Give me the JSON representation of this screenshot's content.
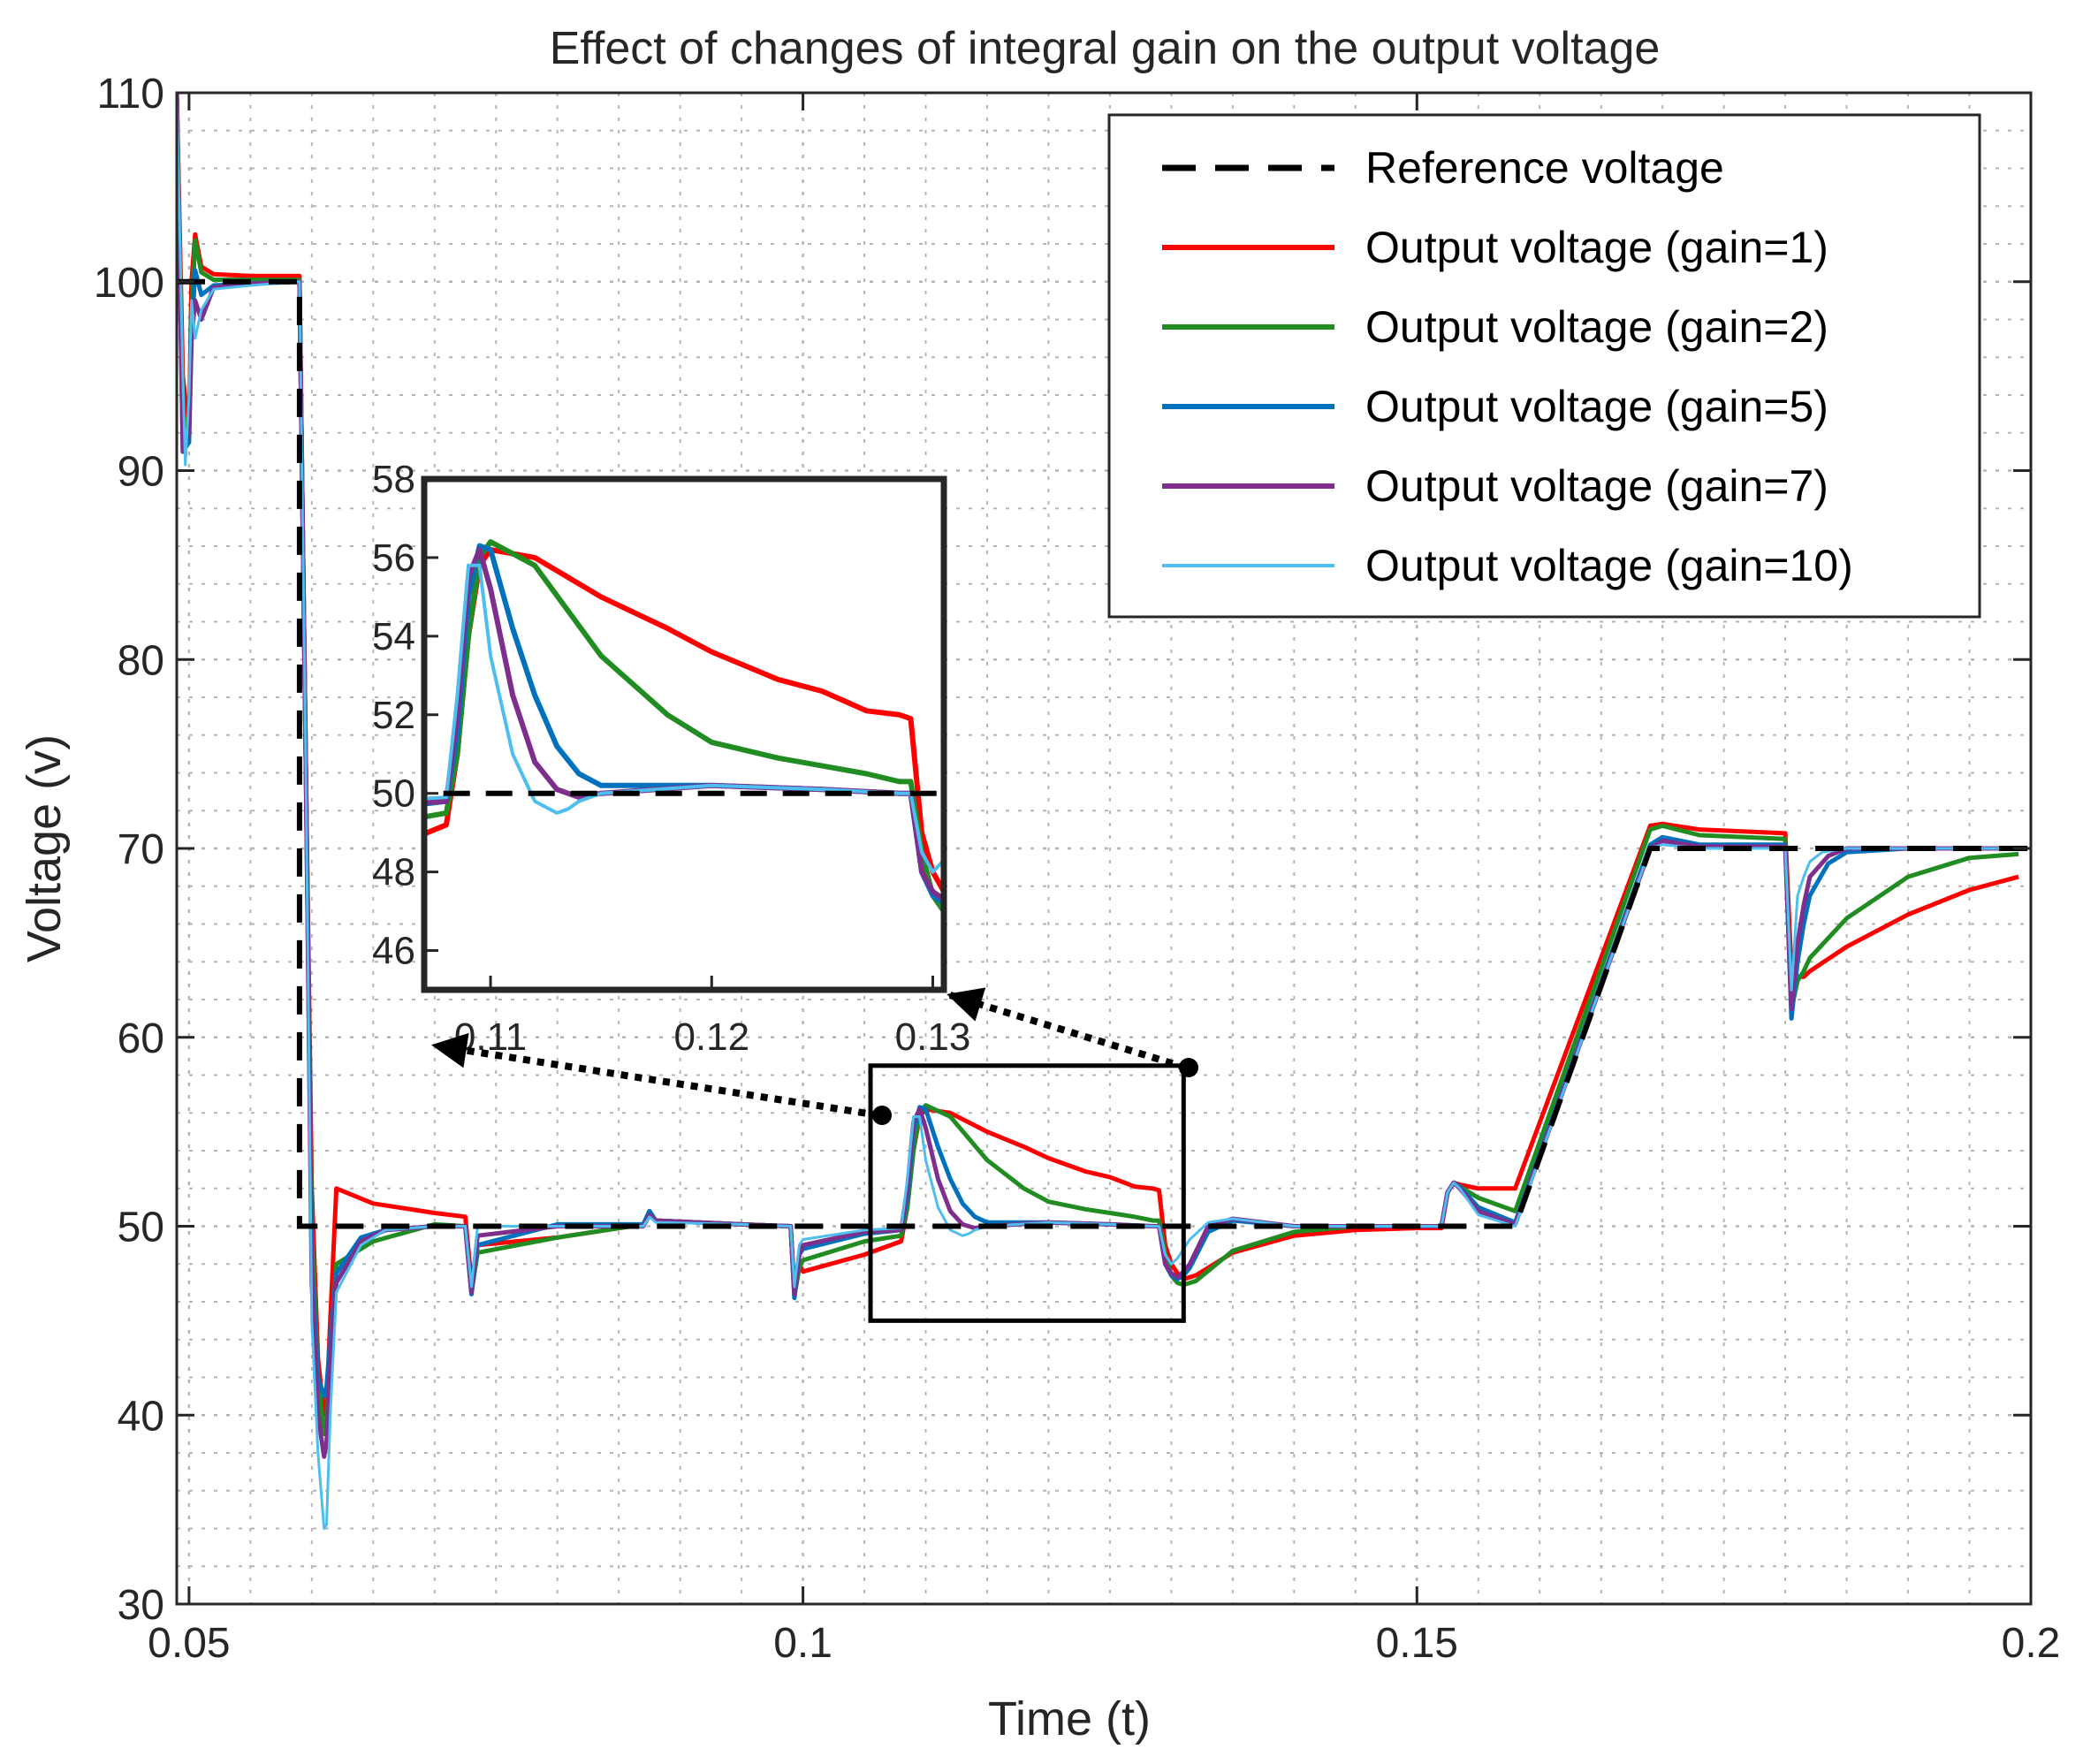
{
  "chart_data": {
    "type": "line",
    "title": "Effect of changes of integral gain on the output voltage",
    "xlabel": "Time (t)",
    "ylabel": "Voltage (v)",
    "xlim": [
      0.049,
      0.2
    ],
    "ylim": [
      30,
      110
    ],
    "xticks": [
      0.05,
      0.1,
      0.15,
      0.2
    ],
    "xtick_labels": [
      "0.05",
      "0.1",
      "0.15",
      "0.2"
    ],
    "yticks": [
      30,
      40,
      50,
      60,
      70,
      80,
      90,
      100,
      110
    ],
    "ytick_labels": [
      "30",
      "40",
      "50",
      "60",
      "70",
      "80",
      "90",
      "100",
      "110"
    ],
    "grid": true,
    "legend_position": "top-right",
    "reference": {
      "name": "Reference voltage",
      "color": "#000000",
      "dashed": true,
      "x": [
        0.049,
        0.059,
        0.059,
        0.158,
        0.169,
        0.2
      ],
      "y": [
        100,
        100,
        50,
        50,
        70,
        70
      ]
    },
    "series": [
      {
        "name": "Output voltage  (gain=1)",
        "color": "#ff0000",
        "width": 5,
        "x": [
          0.049,
          0.0495,
          0.05,
          0.0502,
          0.0505,
          0.051,
          0.052,
          0.055,
          0.059,
          0.0595,
          0.06,
          0.0605,
          0.061,
          0.0612,
          0.0615,
          0.062,
          0.065,
          0.07,
          0.0725,
          0.073,
          0.0735,
          0.08,
          0.087,
          0.0875,
          0.088,
          0.095,
          0.099,
          0.0993,
          0.0997,
          0.1,
          0.105,
          0.108,
          0.1085,
          0.109,
          0.1095,
          0.11,
          0.112,
          0.115,
          0.118,
          0.12,
          0.123,
          0.125,
          0.127,
          0.1285,
          0.129,
          0.1295,
          0.13,
          0.1305,
          0.131,
          0.1315,
          0.132,
          0.135,
          0.14,
          0.145,
          0.15,
          0.152,
          0.1525,
          0.153,
          0.1535,
          0.155,
          0.158,
          0.169,
          0.17,
          0.173,
          0.18,
          0.1805,
          0.181,
          0.1815,
          0.182,
          0.185,
          0.19,
          0.195,
          0.199
        ],
        "y": [
          110,
          95,
          92,
          100,
          102.5,
          100.8,
          100.4,
          100.3,
          100.3,
          75,
          52,
          43,
          40,
          40.5,
          45,
          52,
          51.2,
          50.7,
          50.5,
          47,
          49,
          49.4,
          50.1,
          50.8,
          50.3,
          50.1,
          50,
          46.5,
          48,
          47.6,
          48.5,
          49.2,
          51,
          54,
          55.8,
          56.2,
          56,
          55,
          54.2,
          53.6,
          52.9,
          52.6,
          52.1,
          52,
          51.9,
          49,
          48,
          47.5,
          47.2,
          47.3,
          47.4,
          48.6,
          49.5,
          49.8,
          49.9,
          49.9,
          51.8,
          52.3,
          52.2,
          52,
          52,
          71.2,
          71.3,
          71,
          70.8,
          63.5,
          63.2,
          63.2,
          63.5,
          64.8,
          66.5,
          67.8,
          68.5
        ]
      },
      {
        "name": "Output voltage (gain=2)",
        "color": "#218c21",
        "width": 5,
        "x": [
          0.049,
          0.0495,
          0.05,
          0.0502,
          0.0505,
          0.051,
          0.052,
          0.055,
          0.059,
          0.0595,
          0.06,
          0.0605,
          0.061,
          0.0612,
          0.0615,
          0.062,
          0.065,
          0.07,
          0.0725,
          0.073,
          0.0735,
          0.08,
          0.087,
          0.0875,
          0.088,
          0.095,
          0.099,
          0.0993,
          0.0997,
          0.1,
          0.105,
          0.108,
          0.1085,
          0.109,
          0.1095,
          0.11,
          0.112,
          0.115,
          0.118,
          0.12,
          0.123,
          0.125,
          0.127,
          0.1285,
          0.129,
          0.1295,
          0.13,
          0.1305,
          0.131,
          0.1315,
          0.132,
          0.135,
          0.14,
          0.145,
          0.15,
          0.152,
          0.1525,
          0.153,
          0.1535,
          0.155,
          0.158,
          0.169,
          0.17,
          0.173,
          0.18,
          0.1805,
          0.181,
          0.1815,
          0.182,
          0.185,
          0.19,
          0.195,
          0.199
        ],
        "y": [
          110,
          93,
          92,
          98,
          102.2,
          100.5,
          100.1,
          100.1,
          100.1,
          75,
          50,
          42,
          39,
          39.5,
          43,
          48,
          49.2,
          50.1,
          50,
          46.5,
          48.6,
          49.4,
          50.1,
          50.8,
          50.3,
          50.1,
          50,
          46.3,
          47.8,
          48.2,
          49.2,
          49.5,
          51,
          54,
          56,
          56.4,
          55.8,
          53.5,
          52,
          51.3,
          50.9,
          50.7,
          50.5,
          50.3,
          50.3,
          48.5,
          47.4,
          47,
          46.9,
          47,
          47.1,
          48.7,
          49.7,
          50,
          50,
          50,
          51.8,
          52.3,
          52.1,
          51.5,
          50.8,
          71,
          71.2,
          70.7,
          70.5,
          61.5,
          63,
          63.5,
          64.2,
          66.3,
          68.5,
          69.5,
          69.7
        ]
      },
      {
        "name": "Output voltage (gain=5)",
        "color": "#0072bd",
        "width": 5,
        "x": [
          0.049,
          0.0495,
          0.05,
          0.0502,
          0.0505,
          0.051,
          0.052,
          0.055,
          0.059,
          0.0595,
          0.06,
          0.0605,
          0.061,
          0.0612,
          0.0615,
          0.062,
          0.064,
          0.066,
          0.07,
          0.0725,
          0.073,
          0.0735,
          0.08,
          0.087,
          0.0875,
          0.088,
          0.095,
          0.099,
          0.0993,
          0.0997,
          0.1,
          0.105,
          0.108,
          0.1085,
          0.109,
          0.1095,
          0.11,
          0.111,
          0.112,
          0.113,
          0.114,
          0.115,
          0.12,
          0.125,
          0.1285,
          0.129,
          0.1295,
          0.13,
          0.1305,
          0.131,
          0.1315,
          0.133,
          0.135,
          0.14,
          0.15,
          0.152,
          0.1525,
          0.153,
          0.1535,
          0.155,
          0.158,
          0.169,
          0.17,
          0.173,
          0.18,
          0.1805,
          0.181,
          0.1815,
          0.182,
          0.1835,
          0.185,
          0.19,
          0.199
        ],
        "y": [
          110,
          91,
          91.5,
          97,
          100.6,
          99.3,
          99.8,
          99.9,
          100,
          75,
          48,
          42,
          41,
          41.5,
          44,
          47.5,
          49.4,
          49.8,
          50,
          50,
          46.4,
          49,
          50.1,
          50.1,
          50.8,
          50.3,
          50.1,
          50,
          46.2,
          48.5,
          48.8,
          49.6,
          49.8,
          51.5,
          55,
          56.3,
          56.2,
          54.2,
          52.5,
          51.2,
          50.5,
          50.2,
          50.2,
          50.1,
          50,
          50,
          48,
          47.4,
          47.2,
          47.4,
          47.8,
          49.7,
          50.3,
          50,
          50,
          50,
          51.8,
          52.3,
          52.1,
          51,
          50.2,
          70.2,
          70.6,
          70.2,
          70.2,
          61,
          64,
          66,
          67.5,
          69.2,
          69.8,
          70,
          70
        ]
      },
      {
        "name": "Output voltage (gain=7)",
        "color": "#7e2f8e",
        "width": 5,
        "x": [
          0.049,
          0.0495,
          0.05,
          0.0502,
          0.0505,
          0.051,
          0.052,
          0.055,
          0.059,
          0.0595,
          0.06,
          0.0605,
          0.061,
          0.0612,
          0.0615,
          0.062,
          0.064,
          0.066,
          0.07,
          0.0725,
          0.073,
          0.0735,
          0.08,
          0.087,
          0.0875,
          0.088,
          0.095,
          0.099,
          0.0993,
          0.0997,
          0.1,
          0.105,
          0.108,
          0.1085,
          0.109,
          0.1095,
          0.11,
          0.111,
          0.112,
          0.113,
          0.114,
          0.115,
          0.12,
          0.125,
          0.1285,
          0.129,
          0.1295,
          0.13,
          0.1305,
          0.131,
          0.1315,
          0.133,
          0.135,
          0.14,
          0.15,
          0.152,
          0.1525,
          0.153,
          0.1535,
          0.155,
          0.158,
          0.169,
          0.17,
          0.173,
          0.18,
          0.1805,
          0.181,
          0.1815,
          0.182,
          0.1835,
          0.185,
          0.19,
          0.199
        ],
        "y": [
          110,
          91,
          92,
          97,
          99,
          98,
          99.7,
          99.9,
          100,
          75,
          47,
          40,
          37.8,
          38.5,
          43,
          47,
          49.2,
          49.8,
          50,
          50,
          46.5,
          49.5,
          50,
          50,
          50.6,
          50.3,
          50.1,
          50,
          46.4,
          48.5,
          49,
          49.7,
          49.8,
          52,
          55.5,
          56.2,
          55.2,
          52.5,
          50.8,
          50.1,
          49.9,
          50,
          50.2,
          50.1,
          50,
          50,
          48,
          47.5,
          47.3,
          47.6,
          48,
          50,
          50.4,
          50,
          50,
          50,
          51.8,
          52.3,
          52,
          50.8,
          50.1,
          70,
          70.4,
          70.1,
          70.1,
          61.5,
          65,
          67,
          68.5,
          69.6,
          70,
          70,
          70
        ]
      },
      {
        "name": "Output voltage (gain=10)",
        "color": "#4dbeee",
        "width": 3,
        "x": [
          0.049,
          0.0495,
          0.0497,
          0.05,
          0.0502,
          0.0505,
          0.051,
          0.052,
          0.055,
          0.059,
          0.0595,
          0.06,
          0.0605,
          0.061,
          0.0612,
          0.0615,
          0.062,
          0.064,
          0.066,
          0.07,
          0.0725,
          0.073,
          0.0735,
          0.08,
          0.087,
          0.0875,
          0.088,
          0.095,
          0.099,
          0.0993,
          0.0997,
          0.1,
          0.105,
          0.108,
          0.1085,
          0.109,
          0.1095,
          0.11,
          0.111,
          0.112,
          0.113,
          0.1135,
          0.114,
          0.115,
          0.12,
          0.125,
          0.1285,
          0.129,
          0.1295,
          0.13,
          0.1305,
          0.131,
          0.1315,
          0.133,
          0.135,
          0.14,
          0.15,
          0.152,
          0.1525,
          0.153,
          0.1535,
          0.155,
          0.158,
          0.169,
          0.17,
          0.173,
          0.18,
          0.1805,
          0.181,
          0.1815,
          0.182,
          0.183,
          0.185,
          0.19,
          0.199
        ],
        "y": [
          110,
          95,
          90.3,
          94,
          99,
          97,
          98.5,
          99.6,
          99.8,
          100,
          75,
          45,
          38,
          34,
          34.2,
          40,
          46.5,
          49,
          49.8,
          50,
          50,
          46.8,
          50,
          50,
          50,
          50.5,
          50.2,
          50.1,
          50,
          46.8,
          49,
          49.3,
          49.8,
          49.9,
          52.5,
          55.8,
          55.8,
          53.5,
          51,
          49.8,
          49.5,
          49.6,
          49.8,
          50,
          50.2,
          50.1,
          50,
          50,
          48.5,
          48,
          48.3,
          48.8,
          49.3,
          50.2,
          50.4,
          50,
          50,
          50,
          51.8,
          52.3,
          52,
          50.6,
          50,
          70,
          70.2,
          70,
          70,
          62.5,
          67.5,
          68.5,
          69.3,
          69.8,
          70,
          70,
          70
        ]
      }
    ],
    "inset": {
      "xlim": [
        0.107,
        0.1305
      ],
      "ylim": [
        45,
        58
      ],
      "xticks": [
        0.11,
        0.12,
        0.13
      ],
      "xtick_labels": [
        "0.11",
        "0.12",
        "0.13"
      ],
      "yticks": [
        46,
        48,
        50,
        52,
        54,
        56,
        58
      ],
      "ytick_labels": [
        "46",
        "48",
        "50",
        "52",
        "54",
        "56",
        "58"
      ],
      "zoom_region": {
        "x": [
          0.1055,
          0.131
        ],
        "y": [
          45,
          58.5
        ]
      }
    }
  }
}
